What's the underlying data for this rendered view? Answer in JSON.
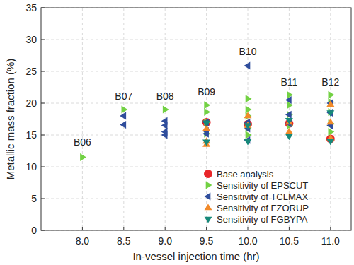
{
  "chart_data": {
    "type": "scatter",
    "x_label": "In-vessel injection time (hr)",
    "y_label": "Metallic mass fraction (%)",
    "xlim": [
      7.5,
      11.25
    ],
    "ylim": [
      0,
      35
    ],
    "xticks": [
      {
        "value": 8,
        "label": "8.0"
      },
      {
        "value": 8.5,
        "label": "8.5"
      },
      {
        "value": 9,
        "label": "9.0"
      },
      {
        "value": 9.5,
        "label": "9.5"
      },
      {
        "value": 10,
        "label": "10.0"
      },
      {
        "value": 10.5,
        "label": "10.5"
      },
      {
        "value": 11,
        "label": "11.0"
      }
    ],
    "yticks": [
      0,
      5,
      10,
      15,
      20,
      25,
      30,
      35
    ],
    "grid": true,
    "legend": "lower right",
    "annotations": [
      {
        "text": "B06",
        "x": 8.0,
        "y": 13.3
      },
      {
        "text": "B07",
        "x": 8.5,
        "y": 20.6
      },
      {
        "text": "B08",
        "x": 9.0,
        "y": 20.6
      },
      {
        "text": "B09",
        "x": 9.5,
        "y": 21.2
      },
      {
        "text": "B10",
        "x": 10.0,
        "y": 27.6
      },
      {
        "text": "B11",
        "x": 10.5,
        "y": 22.8
      },
      {
        "text": "B12",
        "x": 11.0,
        "y": 22.8
      }
    ],
    "series": [
      {
        "name": "Base analysis",
        "color": "#e8262a",
        "marker": "circle",
        "x": [
          9.5,
          10.0,
          10.5,
          11.0
        ],
        "values": [
          17.0,
          16.7,
          16.8,
          14.4
        ]
      },
      {
        "name": "Sensitivity of EPSCUT",
        "color": "#72d143",
        "marker": "triangle-right",
        "x": [
          8.0,
          8.5,
          9.0,
          9.5,
          9.5,
          9.5,
          9.5,
          10.0,
          10.0,
          10.0,
          10.0,
          10.0,
          10.5,
          10.5,
          10.5,
          10.5,
          10.5,
          11.0,
          11.0,
          11.0,
          11.0,
          11.0
        ],
        "values": [
          11.5,
          19.0,
          19.0,
          19.7,
          18.6,
          17.0,
          15.2,
          20.7,
          19.0,
          18.0,
          16.0,
          15.0,
          21.3,
          19.7,
          18.2,
          16.5,
          15.2,
          21.3,
          20.2,
          18.6,
          16.8,
          15.5
        ]
      },
      {
        "name": "Sensitivity of TCLMAX",
        "color": "#2f4d9c",
        "marker": "triangle-left",
        "x": [
          8.5,
          8.5,
          9.0,
          9.0,
          9.0,
          9.0,
          9.5,
          9.5,
          9.5,
          10.0,
          10.0,
          10.0,
          10.0,
          10.5,
          10.5,
          10.5,
          11.0,
          11.0,
          11.0
        ],
        "values": [
          18.0,
          16.6,
          17.2,
          16.5,
          15.5,
          15.0,
          17.0,
          15.6,
          15.2,
          25.9,
          17.0,
          16.0,
          14.2,
          20.5,
          18.2,
          16.8,
          20.0,
          18.5,
          16.5
        ]
      },
      {
        "name": "Sensitivity of FZORUP",
        "color": "#f28a2a",
        "marker": "triangle-up",
        "x": [
          9.5,
          9.5,
          9.5,
          10.0,
          10.0,
          10.5,
          10.5,
          11.0,
          11.0,
          11.0
        ],
        "values": [
          16.0,
          14.0,
          13.5,
          18.0,
          16.5,
          17.0,
          15.5,
          19.8,
          17.0,
          14.5
        ]
      },
      {
        "name": "Sensitivity of FGBYPA",
        "color": "#17897a",
        "marker": "triangle-down",
        "x": [
          9.5,
          9.5,
          10.0,
          10.0,
          10.5,
          10.5,
          11.0,
          11.0
        ],
        "values": [
          16.9,
          13.9,
          16.5,
          14.0,
          17.3,
          14.8,
          18.5,
          14.0
        ]
      }
    ]
  }
}
